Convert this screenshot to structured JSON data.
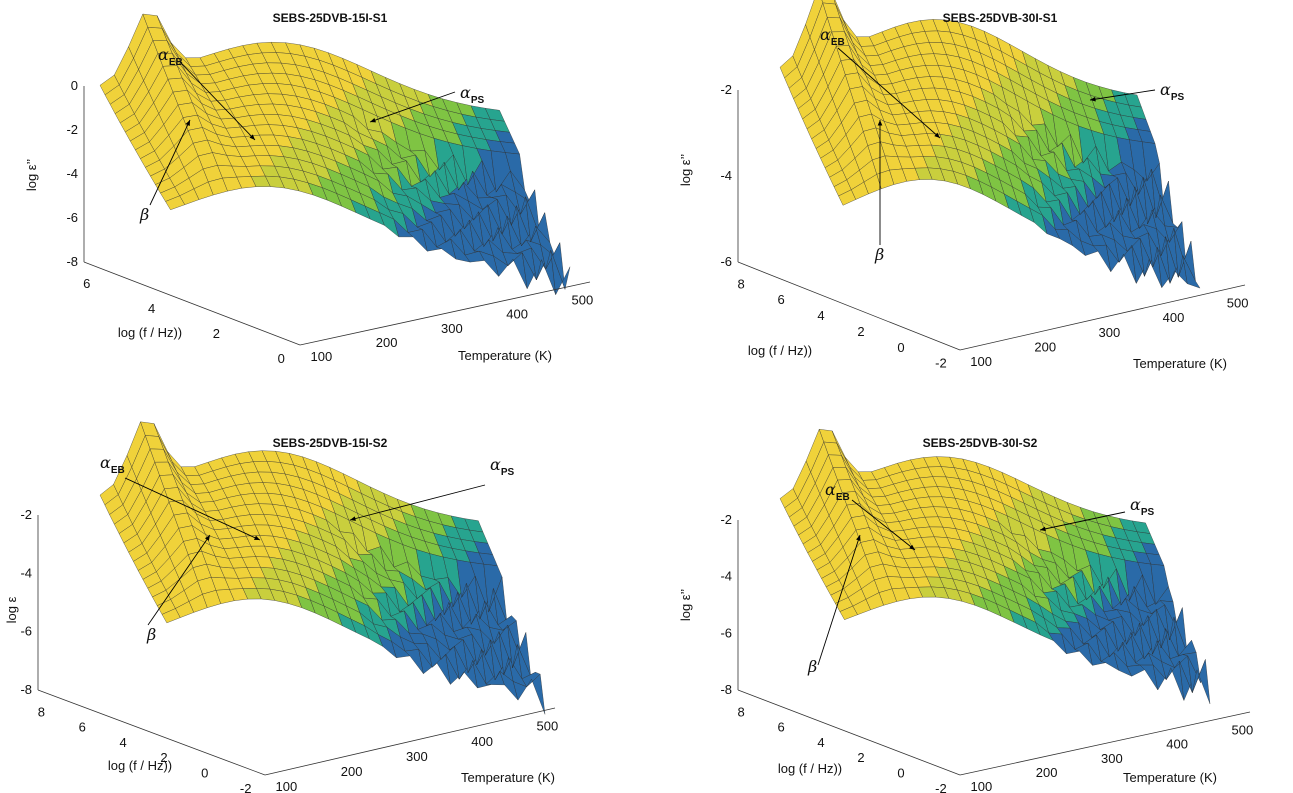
{
  "colors": {
    "surface_high": "#f2d43a",
    "surface_mid": "#8fc63e",
    "surface_low": "#1c8da8",
    "surface_deep": "#2a4aa0",
    "mesh": "#222222",
    "axis": "#333333"
  },
  "chart_data": [
    {
      "type": "surface",
      "title": "SEBS-25DVB-15I-S1",
      "zlabel": "log ε’’",
      "ylabel": "log (f / Hz))",
      "xlabel": "Temperature (K)",
      "xticks": [
        "100",
        "200",
        "300",
        "400",
        "500"
      ],
      "yticks": [
        "0",
        "2",
        "4",
        "6"
      ],
      "zticks": [
        "0",
        "-2",
        "-4",
        "-6",
        "-8"
      ],
      "xlim": [
        100,
        500
      ],
      "ylim": [
        0,
        7
      ],
      "zlim": [
        -8,
        0
      ],
      "annotations": [
        {
          "symbol": "α",
          "sub": "EB"
        },
        {
          "symbol": "α",
          "sub": "PS"
        },
        {
          "symbol": "β",
          "sub": ""
        }
      ]
    },
    {
      "type": "surface",
      "title": "SEBS-25DVB-30I-S1",
      "zlabel": "log ε’’",
      "ylabel": "log (f / Hz))",
      "xlabel": "Temperature (K)",
      "xticks": [
        "100",
        "200",
        "300",
        "400",
        "500"
      ],
      "yticks": [
        "-2",
        "0",
        "2",
        "4",
        "6",
        "8"
      ],
      "zticks": [
        "-2",
        "-4",
        "-6"
      ],
      "xlim": [
        100,
        500
      ],
      "ylim": [
        -2,
        8
      ],
      "zlim": [
        -7,
        -1
      ],
      "annotations": [
        {
          "symbol": "α",
          "sub": "EB"
        },
        {
          "symbol": "α",
          "sub": "PS"
        },
        {
          "symbol": "β",
          "sub": ""
        }
      ]
    },
    {
      "type": "surface",
      "title": "SEBS-25DVB-15I-S2",
      "zlabel": "log ε",
      "ylabel": "log (f / Hz))",
      "xlabel": "Temperature (K)",
      "xticks": [
        "100",
        "200",
        "300",
        "400",
        "500"
      ],
      "yticks": [
        "-2",
        "0",
        "2",
        "4",
        "6",
        "8"
      ],
      "zticks": [
        "-2",
        "-4",
        "-6",
        "-8"
      ],
      "xlim": [
        100,
        500
      ],
      "ylim": [
        -2,
        8
      ],
      "zlim": [
        -8,
        -1
      ],
      "annotations": [
        {
          "symbol": "α",
          "sub": "EB"
        },
        {
          "symbol": "α",
          "sub": "PS"
        },
        {
          "symbol": "β",
          "sub": ""
        }
      ]
    },
    {
      "type": "surface",
      "title": "SEBS-25DVB-30I-S2",
      "zlabel": "log ε’’",
      "ylabel": "log (f / Hz))",
      "xlabel": "Temperature (K)",
      "xticks": [
        "100",
        "200",
        "300",
        "400",
        "500"
      ],
      "yticks": [
        "-2",
        "0",
        "2",
        "4",
        "6",
        "8"
      ],
      "zticks": [
        "-2",
        "-4",
        "-6",
        "-8"
      ],
      "xlim": [
        100,
        500
      ],
      "ylim": [
        -2,
        8
      ],
      "zlim": [
        -8,
        -1
      ],
      "annotations": [
        {
          "symbol": "α",
          "sub": "EB"
        },
        {
          "symbol": "α",
          "sub": "PS"
        },
        {
          "symbol": "β",
          "sub": ""
        }
      ]
    }
  ]
}
